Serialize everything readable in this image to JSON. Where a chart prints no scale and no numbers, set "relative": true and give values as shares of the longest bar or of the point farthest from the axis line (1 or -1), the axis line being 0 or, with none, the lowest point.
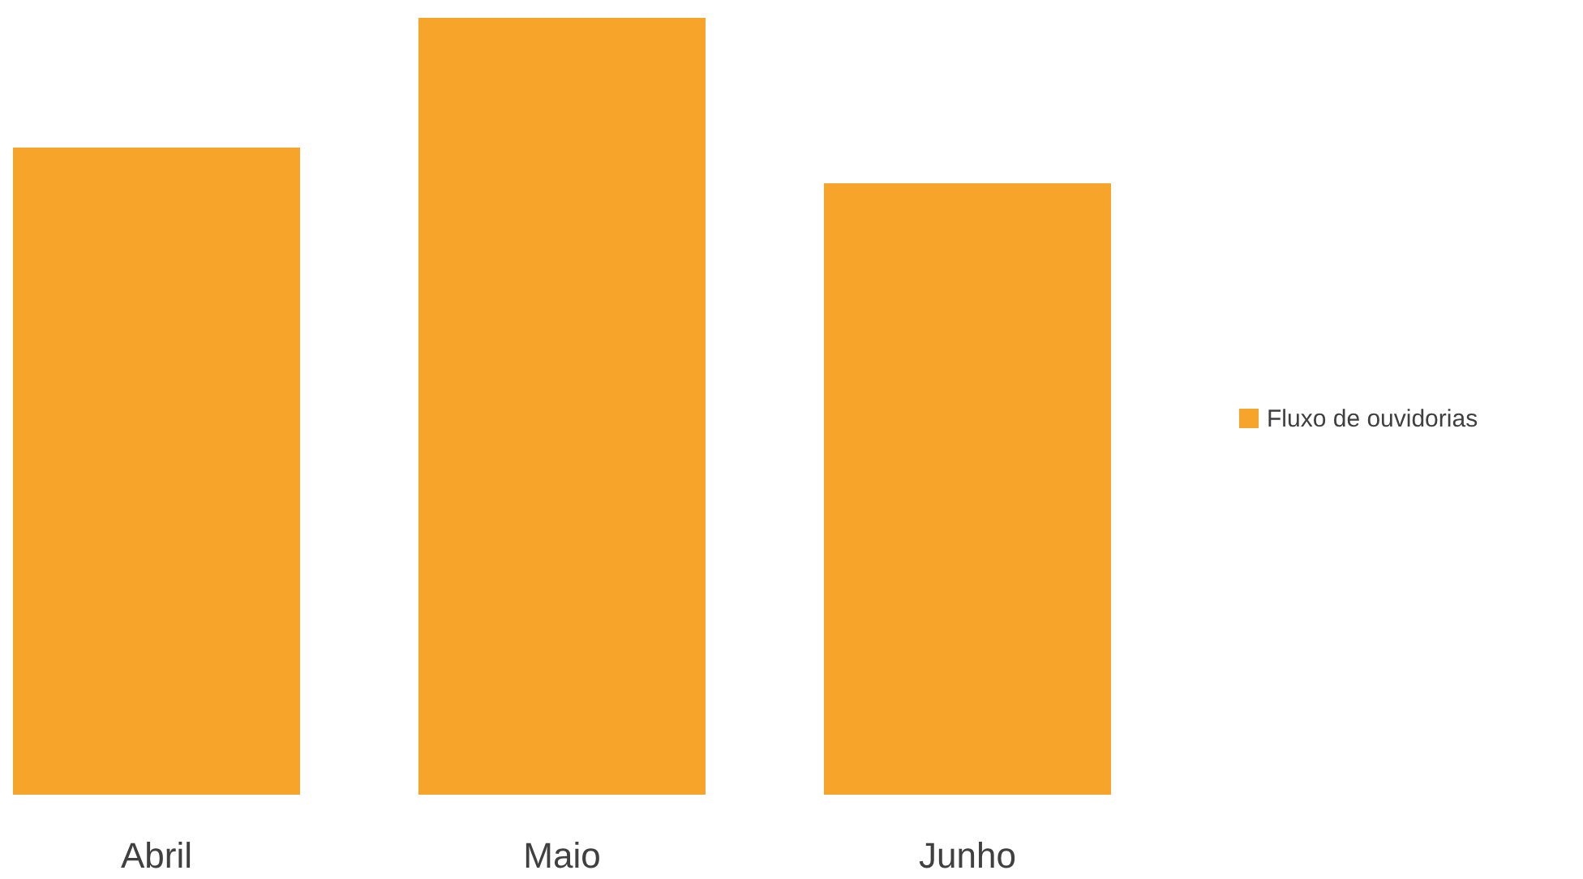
{
  "chart_data": {
    "type": "bar",
    "relative": true,
    "categories": [
      "Abril",
      "Maio",
      "Junho"
    ],
    "series": [
      {
        "name": "Fluxo de ouvidorias",
        "color": "#f6a42a",
        "values": [
          0.833,
          1,
          0.787
        ]
      }
    ],
    "legend": "right"
  }
}
